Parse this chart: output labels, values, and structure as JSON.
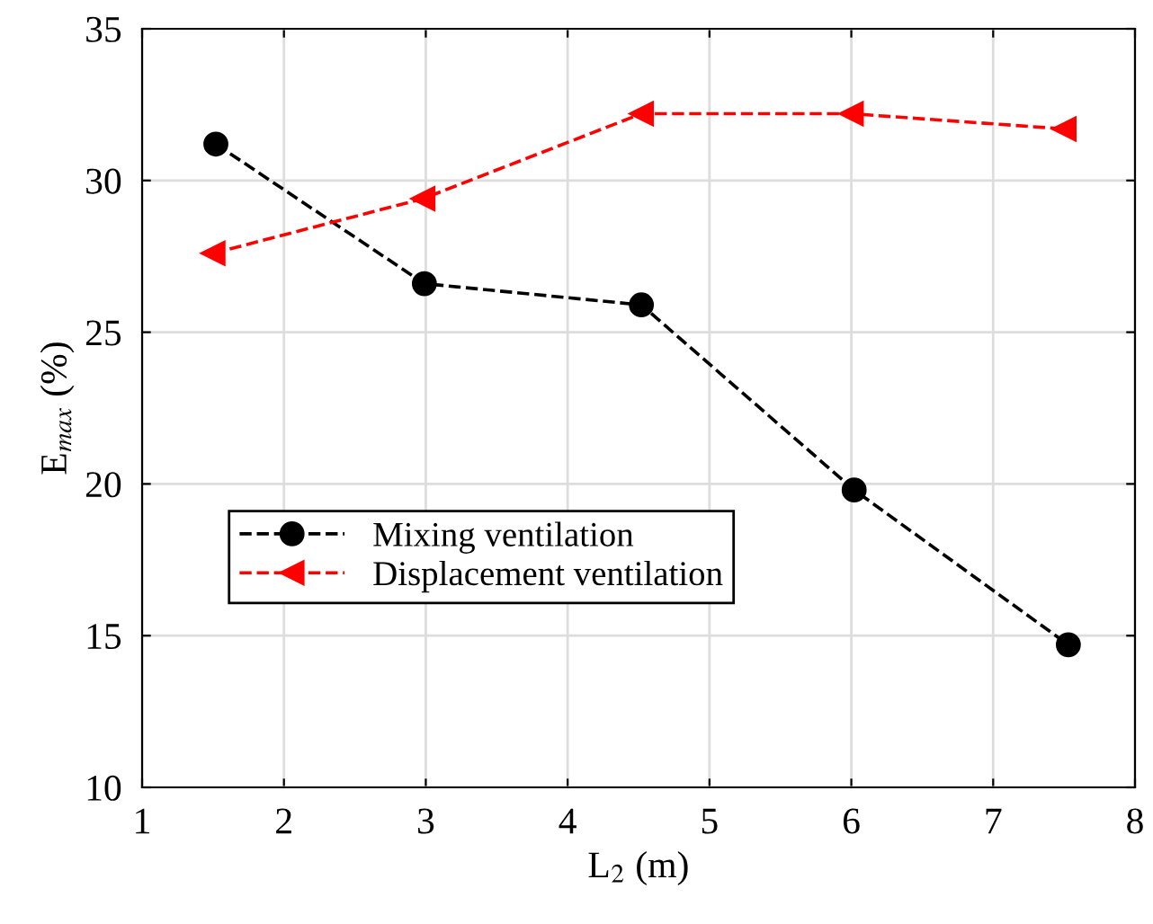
{
  "chart_data": {
    "type": "line",
    "xlabel": "L$_{2}$ (m)",
    "ylabel": "E$_{max}$ (%)",
    "xlim": [
      1,
      8
    ],
    "xticks": [
      1,
      2,
      3,
      4,
      5,
      6,
      7,
      8
    ],
    "ylim": [
      10,
      35
    ],
    "yticks": [
      10,
      15,
      20,
      25,
      30,
      35
    ],
    "grid": true,
    "legend": "bottom left",
    "line_style": "dashed",
    "series": [
      {
        "name": "Mixing ventilation",
        "color": "#000000",
        "marker": "circle",
        "x": [
          1.52,
          2.99,
          4.52,
          6.02,
          7.53
        ],
        "values": [
          31.2,
          26.6,
          25.9,
          19.8,
          14.7
        ]
      },
      {
        "name": "Displacement ventilation",
        "color": "#ff0000",
        "marker": "triangle",
        "x": [
          1.5,
          2.98,
          4.52,
          6.0,
          7.5
        ],
        "values": [
          27.6,
          29.4,
          32.2,
          32.2,
          31.7
        ]
      }
    ]
  }
}
